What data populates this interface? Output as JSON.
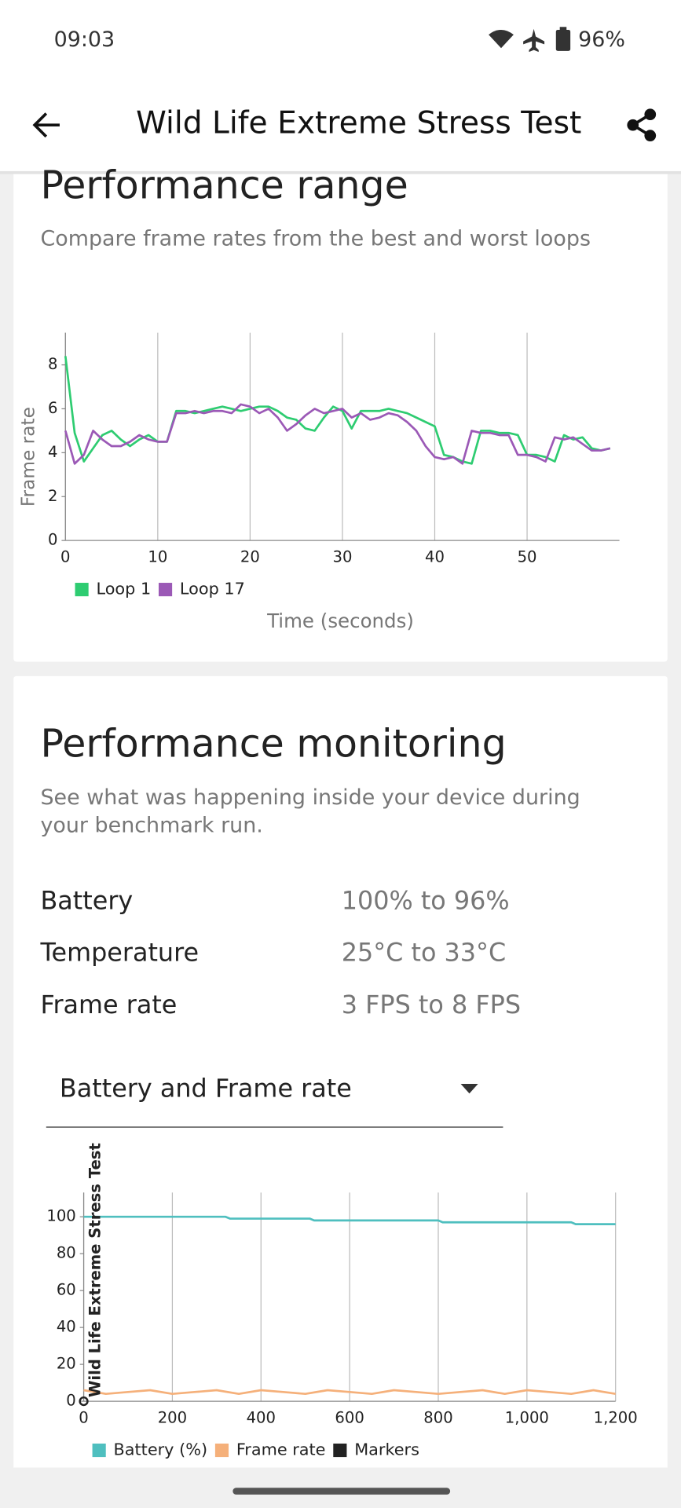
{
  "status_bar": {
    "time": "09:03",
    "battery": "96%"
  },
  "app_bar": {
    "title": "Wild Life Extreme Stress Test"
  },
  "performance_range": {
    "title": "Performance range",
    "subtitle": "Compare frame rates from the best and worst loops",
    "chart_data": {
      "type": "line",
      "ylabel": "Frame rate",
      "xlabel": "Time (seconds)",
      "x": [
        0,
        1,
        2,
        3,
        4,
        5,
        6,
        7,
        8,
        9,
        10,
        11,
        12,
        13,
        14,
        15,
        16,
        17,
        18,
        19,
        20,
        21,
        22,
        23,
        24,
        25,
        26,
        27,
        28,
        29,
        30,
        31,
        32,
        33,
        34,
        35,
        36,
        37,
        38,
        39,
        40,
        41,
        42,
        43,
        44,
        45,
        46,
        47,
        48,
        49,
        50,
        51,
        52,
        53,
        54,
        55,
        56,
        57,
        58,
        59
      ],
      "series": [
        {
          "name": "Loop 1",
          "color": "#2ecc71",
          "values": [
            8.4,
            4.9,
            3.6,
            4.2,
            4.8,
            5.0,
            4.6,
            4.3,
            4.6,
            4.8,
            4.5,
            4.5,
            5.9,
            5.9,
            5.8,
            5.9,
            6.0,
            6.1,
            6.0,
            5.9,
            6.0,
            6.1,
            6.1,
            5.9,
            5.6,
            5.5,
            5.1,
            5.0,
            5.6,
            6.1,
            5.9,
            5.1,
            5.9,
            5.9,
            5.9,
            6.0,
            5.9,
            5.8,
            5.6,
            5.4,
            5.2,
            3.9,
            3.8,
            3.6,
            3.5,
            5.0,
            5.0,
            4.9,
            4.9,
            4.8,
            3.9,
            3.9,
            3.8,
            3.6,
            4.8,
            4.6,
            4.7,
            4.2,
            4.1,
            4.2
          ]
        },
        {
          "name": "Loop 17",
          "color": "#9b59b6",
          "values": [
            5.0,
            3.5,
            3.9,
            5.0,
            4.6,
            4.3,
            4.3,
            4.5,
            4.8,
            4.6,
            4.5,
            4.5,
            5.8,
            5.8,
            5.9,
            5.8,
            5.9,
            5.9,
            5.8,
            6.2,
            6.1,
            5.8,
            6.0,
            5.6,
            5.0,
            5.3,
            5.7,
            6.0,
            5.8,
            5.9,
            6.0,
            5.6,
            5.8,
            5.5,
            5.6,
            5.8,
            5.7,
            5.4,
            5.0,
            4.3,
            3.8,
            3.7,
            3.8,
            3.5,
            5.0,
            4.9,
            4.9,
            4.8,
            4.8,
            3.9,
            3.9,
            3.8,
            3.6,
            4.7,
            4.6,
            4.7,
            4.4,
            4.1,
            4.1,
            4.2
          ]
        }
      ],
      "xlim": [
        0,
        60
      ],
      "xticks": [
        0,
        10,
        20,
        30,
        40,
        50
      ],
      "ylim": [
        0,
        9.2
      ],
      "yticks": [
        0,
        2,
        4,
        6,
        8
      ],
      "grid": "x"
    }
  },
  "performance_monitoring": {
    "title": "Performance monitoring",
    "description": [
      "See what was happening inside your device during",
      "your benchmark run."
    ],
    "stats": [
      {
        "label": "Battery",
        "value": "100% to 96%"
      },
      {
        "label": "Temperature",
        "value": "25°C to 33°C"
      },
      {
        "label": "Frame rate",
        "value": "3 FPS to 8 FPS"
      }
    ],
    "dropdown": "Battery and Frame rate",
    "chart_data": {
      "type": "line",
      "series": [
        {
          "name": "Battery (%)",
          "color": "#4fbfbf",
          "x": [
            0,
            320,
            330,
            510,
            520,
            800,
            810,
            1100,
            1110,
            1200
          ],
          "values": [
            100,
            100,
            99,
            99,
            98,
            98,
            97,
            97,
            96,
            96
          ]
        },
        {
          "name": "Frame rate",
          "color": "#f5b07a",
          "x": [
            0,
            50,
            100,
            150,
            200,
            250,
            300,
            350,
            400,
            450,
            500,
            550,
            600,
            650,
            700,
            750,
            800,
            850,
            900,
            950,
            1000,
            1050,
            1100,
            1150,
            1200
          ],
          "values": [
            6,
            4,
            5,
            6,
            4,
            5,
            6,
            4,
            6,
            5,
            4,
            6,
            5,
            4,
            6,
            5,
            4,
            5,
            6,
            4,
            6,
            5,
            4,
            6,
            4
          ]
        },
        {
          "name": "Markers",
          "color": "#222222",
          "x": [
            0
          ],
          "values": [
            0
          ],
          "label": "Wild Life Extreme Stress Test"
        }
      ],
      "xlim": [
        0,
        1200
      ],
      "xticks": [
        0,
        200,
        400,
        600,
        800,
        {
          "value": 1000,
          "label": "1,000"
        },
        {
          "value": 1200,
          "label": "1,200"
        }
      ],
      "ylim": [
        0,
        110
      ],
      "yticks": [
        0,
        20,
        40,
        60,
        80,
        100
      ],
      "grid": "x"
    }
  }
}
